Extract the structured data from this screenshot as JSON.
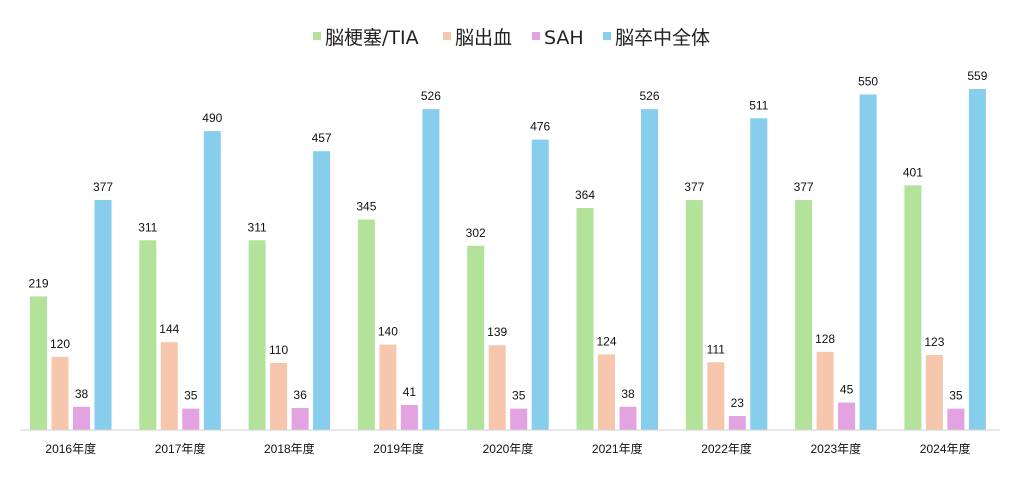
{
  "chart_data": {
    "type": "bar",
    "categories": [
      "2016年度",
      "2017年度",
      "2018年度",
      "2019年度",
      "2020年度",
      "2021年度",
      "2022年度",
      "2023年度",
      "2024年度"
    ],
    "series": [
      {
        "name": "脳梗塞/TIA",
        "color": "#b3e39b",
        "values": [
          219,
          311,
          311,
          345,
          302,
          364,
          377,
          377,
          401
        ]
      },
      {
        "name": "脳出血",
        "color": "#f6c7ad",
        "values": [
          120,
          144,
          110,
          140,
          139,
          124,
          111,
          128,
          123
        ]
      },
      {
        "name": "SAH",
        "color": "#e3a3e0",
        "values": [
          38,
          35,
          36,
          41,
          35,
          38,
          23,
          45,
          35
        ]
      },
      {
        "name": "脳卒中全体",
        "color": "#86ceeb",
        "values": [
          377,
          490,
          457,
          526,
          476,
          526,
          511,
          550,
          559
        ]
      }
    ],
    "ylim": [
      0,
      600
    ],
    "grid": false,
    "legend_position": "top-center",
    "title": "",
    "xlabel": "",
    "ylabel": ""
  }
}
